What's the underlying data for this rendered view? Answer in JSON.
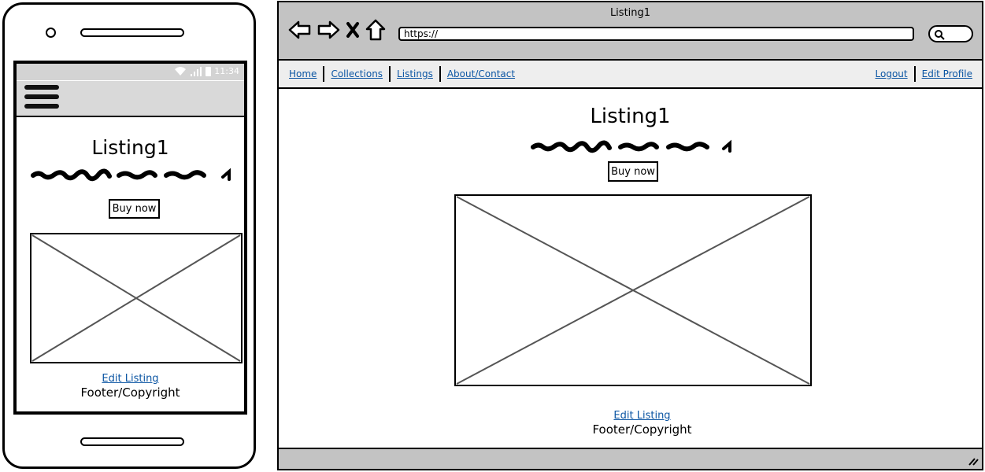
{
  "phone": {
    "status": {
      "time": "11:34",
      "icons": [
        "wifi-icon",
        "signal-icon",
        "battery-icon"
      ]
    },
    "menu_icon": "hamburger-icon",
    "page": {
      "title": "Listing1",
      "buy_label": "Buy now",
      "edit_link": "Edit Listing",
      "footer": "Footer/Copyright"
    }
  },
  "browser": {
    "window_title": "Listing1",
    "nav_icons": [
      "back-arrow-icon",
      "forward-arrow-icon",
      "close-x-icon",
      "home-icon"
    ],
    "url": "https://",
    "nav": {
      "left": [
        "Home",
        "Collections",
        "Listings",
        "About/Contact"
      ],
      "right": [
        "Logout",
        "Edit Profile"
      ]
    },
    "page": {
      "title": "Listing1",
      "buy_label": "Buy now",
      "edit_link": "Edit Listing",
      "footer": "Footer/Copyright"
    }
  },
  "colors": {
    "link": "#0b55a3",
    "chrome": "#c3c3c3",
    "navbar": "#eeeeee",
    "statusbar_phone": "#d3d3d3"
  }
}
